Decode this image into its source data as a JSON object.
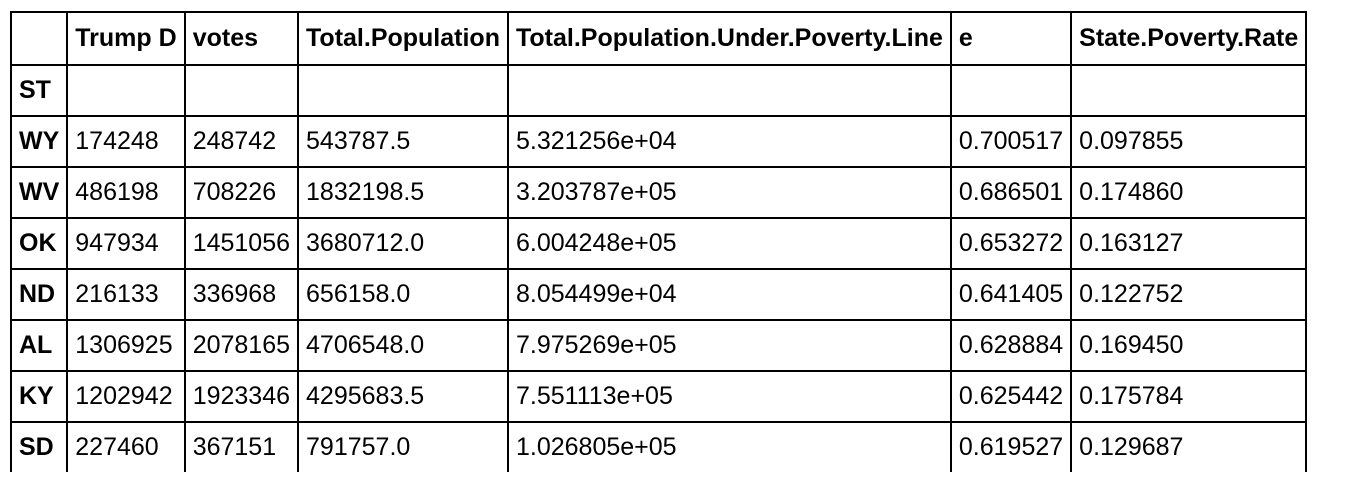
{
  "table": {
    "columns": [
      "",
      "Trump D",
      "votes",
      "Total.Population",
      "Total.Population.Under.Poverty.Line",
      "e",
      "State.Poverty.Rate"
    ],
    "index_name": "ST",
    "rows": [
      {
        "index": "WY",
        "cells": [
          "174248",
          "248742",
          "543787.5",
          "5.321256e+04",
          "0.700517",
          "0.097855"
        ]
      },
      {
        "index": "WV",
        "cells": [
          "486198",
          "708226",
          "1832198.5",
          "3.203787e+05",
          "0.686501",
          "0.174860"
        ]
      },
      {
        "index": "OK",
        "cells": [
          "947934",
          "1451056",
          "3680712.0",
          "6.004248e+05",
          "0.653272",
          "0.163127"
        ]
      },
      {
        "index": "ND",
        "cells": [
          "216133",
          "336968",
          "656158.0",
          "8.054499e+04",
          "0.641405",
          "0.122752"
        ]
      },
      {
        "index": "AL",
        "cells": [
          "1306925",
          "2078165",
          "4706548.0",
          "7.975269e+05",
          "0.628884",
          "0.169450"
        ]
      },
      {
        "index": "KY",
        "cells": [
          "1202942",
          "1923346",
          "4295683.5",
          "7.551113e+05",
          "0.625442",
          "0.175784"
        ]
      },
      {
        "index": "SD",
        "cells": [
          "227460",
          "367151",
          "791757.0",
          "1.026805e+05",
          "0.619527",
          "0.129687"
        ]
      }
    ]
  }
}
